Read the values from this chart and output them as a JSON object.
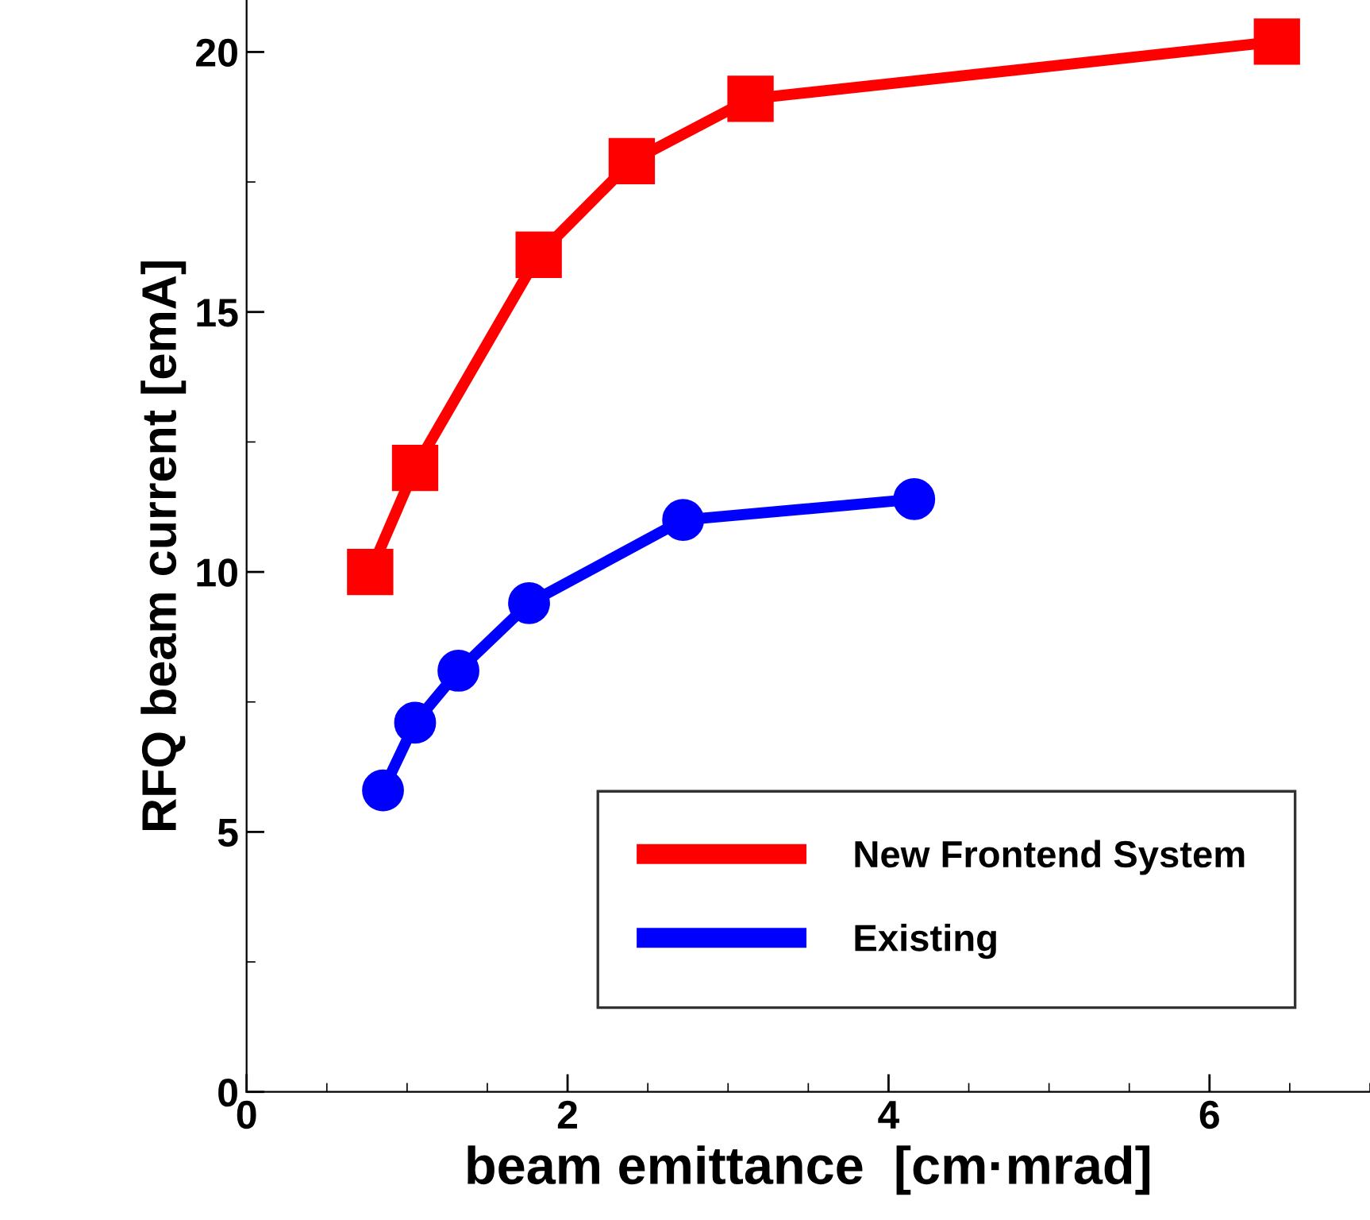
{
  "chart_data": {
    "type": "line",
    "xlabel": "beam emittance  [cm·mrad]",
    "ylabel": "RFQ beam current [emA]",
    "xlim": [
      0,
      7
    ],
    "xticks": [
      0,
      2,
      4,
      6
    ],
    "ylim": [
      0,
      21
    ],
    "yticks": [
      0,
      5,
      10,
      15,
      20
    ],
    "grid": false,
    "legend": "bottom right",
    "line_style": "solid",
    "series": [
      {
        "name": "New Frontend System",
        "color": "#ff0000",
        "marker": "square",
        "x": [
          0.77,
          1.05,
          1.82,
          2.4,
          3.14,
          6.42
        ],
        "values": [
          10.0,
          12.0,
          16.1,
          17.9,
          19.1,
          20.2
        ]
      },
      {
        "name": "Existing",
        "color": "#0000ff",
        "marker": "circle",
        "x": [
          0.85,
          1.05,
          1.32,
          1.76,
          2.72,
          4.16
        ],
        "values": [
          5.8,
          7.1,
          8.1,
          9.4,
          11.0,
          11.4
        ]
      }
    ]
  }
}
